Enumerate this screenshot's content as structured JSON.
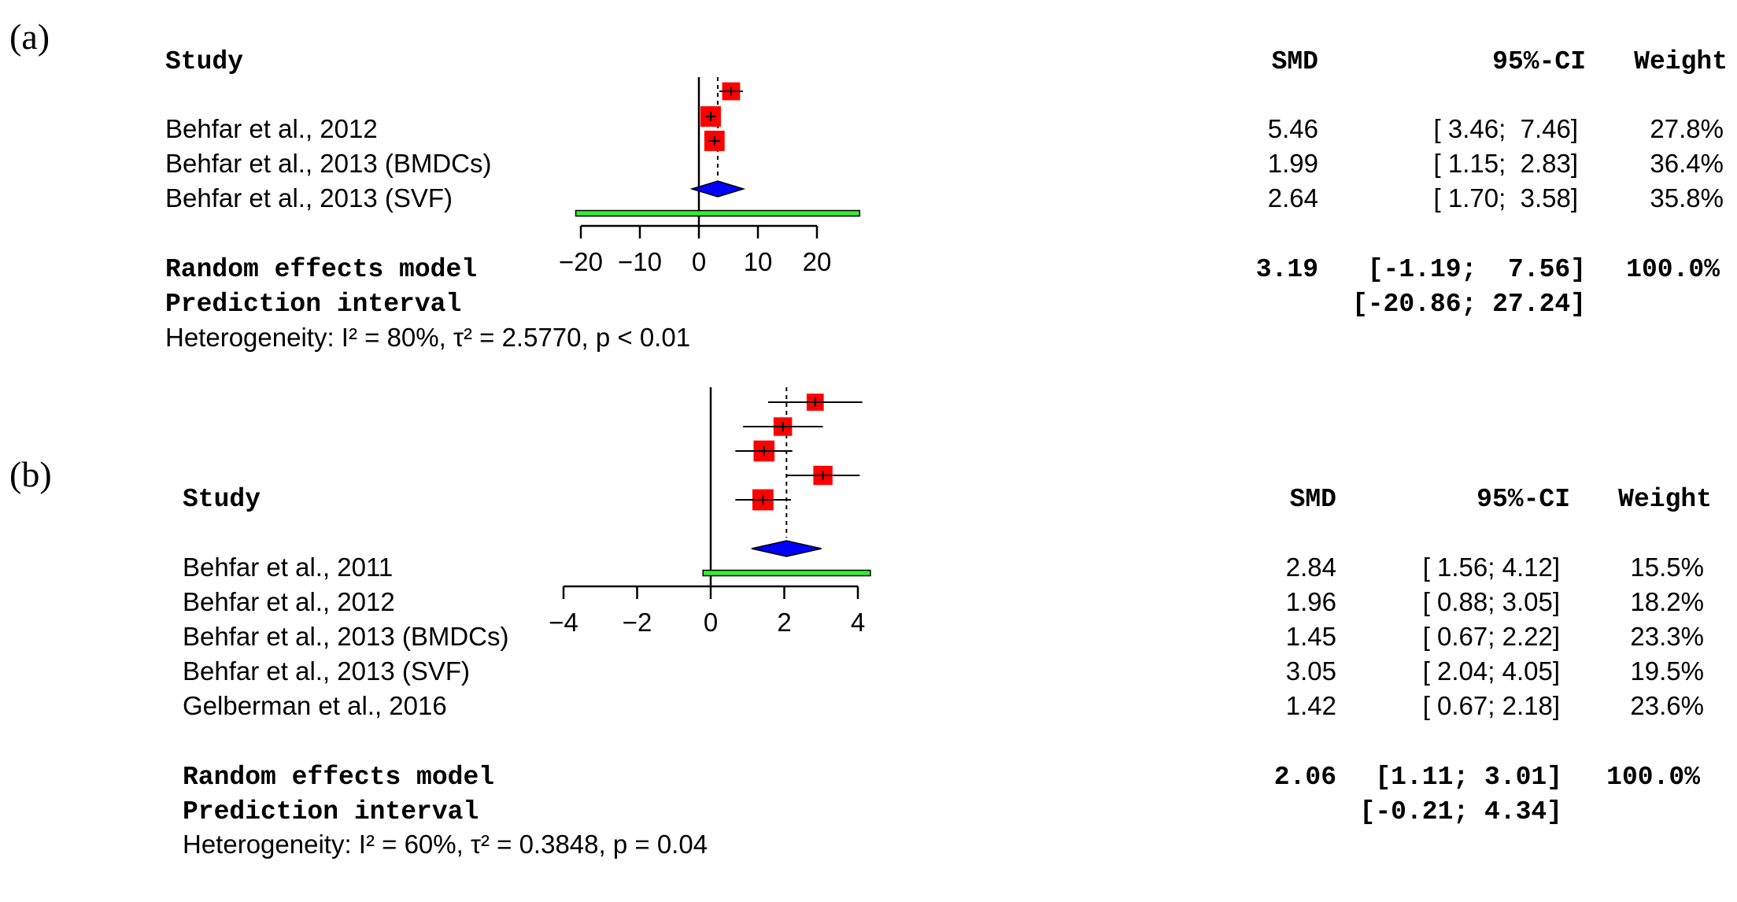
{
  "chart_data": [
    {
      "type": "forest",
      "panel_label": "(a)",
      "headers": {
        "study": "Study",
        "smd": "SMD",
        "ci": "95%-CI",
        "weight": "Weight"
      },
      "studies": [
        {
          "label": "Behfar et al., 2012",
          "smd": 5.46,
          "lo": 3.46,
          "hi": 7.46,
          "smd_text": "5.46",
          "ci_text": "[ 3.46;  7.46]",
          "weight_text": "27.8%",
          "weight": 27.8
        },
        {
          "label": "Behfar et al., 2013 (BMDCs)",
          "smd": 1.99,
          "lo": 1.15,
          "hi": 2.83,
          "smd_text": "1.99",
          "ci_text": "[ 1.15;  2.83]",
          "weight_text": "36.4%",
          "weight": 36.4
        },
        {
          "label": "Behfar et al., 2013 (SVF)",
          "smd": 2.64,
          "lo": 1.7,
          "hi": 3.58,
          "smd_text": "2.64",
          "ci_text": "[ 1.70;  3.58]",
          "weight_text": "35.8%",
          "weight": 35.8
        }
      ],
      "random": {
        "label": "Random effects model",
        "smd": 3.19,
        "lo": -1.19,
        "hi": 7.56,
        "smd_text": "3.19",
        "ci_text": "[-1.19;  7.56]",
        "weight_text": "100.0%"
      },
      "prediction": {
        "label": "Prediction interval",
        "lo": -20.86,
        "hi": 27.24,
        "ci_text": "[-20.86; 27.24]"
      },
      "heterogeneity": "Heterogeneity: I² = 80%, τ² = 2.5770, p < 0.01",
      "axis": {
        "ticks": [
          -20,
          -10,
          0,
          10,
          20
        ],
        "tick_labels": [
          "−20",
          "−10",
          "0",
          "10",
          "20"
        ],
        "range": [
          -20,
          20
        ]
      }
    },
    {
      "type": "forest",
      "panel_label": "(b)",
      "headers": {
        "study": "Study",
        "smd": "SMD",
        "ci": "95%-CI",
        "weight": "Weight"
      },
      "studies": [
        {
          "label": "Behfar et al., 2011",
          "smd": 2.84,
          "lo": 1.56,
          "hi": 4.12,
          "smd_text": "2.84",
          "ci_text": "[ 1.56; 4.12]",
          "weight_text": "15.5%",
          "weight": 15.5
        },
        {
          "label": "Behfar et al., 2012",
          "smd": 1.96,
          "lo": 0.88,
          "hi": 3.05,
          "smd_text": "1.96",
          "ci_text": "[ 0.88; 3.05]",
          "weight_text": "18.2%",
          "weight": 18.2
        },
        {
          "label": "Behfar et al., 2013 (BMDCs)",
          "smd": 1.45,
          "lo": 0.67,
          "hi": 2.22,
          "smd_text": "1.45",
          "ci_text": "[ 0.67; 2.22]",
          "weight_text": "23.3%",
          "weight": 23.3
        },
        {
          "label": "Behfar et al., 2013 (SVF)",
          "smd": 3.05,
          "lo": 2.04,
          "hi": 4.05,
          "smd_text": "3.05",
          "ci_text": "[ 2.04; 4.05]",
          "weight_text": "19.5%",
          "weight": 19.5
        },
        {
          "label": "Gelberman et al., 2016",
          "smd": 1.42,
          "lo": 0.67,
          "hi": 2.18,
          "smd_text": "1.42",
          "ci_text": "[ 0.67; 2.18]",
          "weight_text": "23.6%",
          "weight": 23.6
        }
      ],
      "random": {
        "label": "Random effects model",
        "smd": 2.06,
        "lo": 1.11,
        "hi": 3.01,
        "smd_text": "2.06",
        "ci_text": "[1.11; 3.01]",
        "weight_text": "100.0%"
      },
      "prediction": {
        "label": "Prediction interval",
        "lo": -0.21,
        "hi": 4.34,
        "ci_text": "[-0.21; 4.34]"
      },
      "heterogeneity": "Heterogeneity: I² = 60%, τ² = 0.3848, p = 0.04",
      "axis": {
        "ticks": [
          -4,
          -2,
          0,
          2,
          4
        ],
        "tick_labels": [
          "−4",
          "−2",
          "0",
          "2",
          "4"
        ],
        "range": [
          -4,
          4
        ]
      }
    }
  ],
  "colors": {
    "square": "#ff0000",
    "diamond": "#0000ff",
    "prediction": "#33ee33",
    "line": "#000000"
  }
}
